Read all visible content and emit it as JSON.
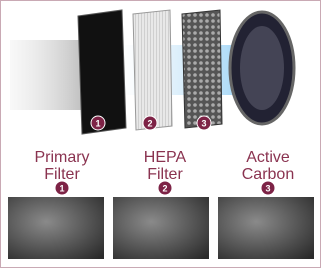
{
  "filters": [
    {
      "label": [
        "Primary",
        "Filter"
      ],
      "number": "1"
    },
    {
      "label": [
        "HEPA",
        "Filter"
      ],
      "number": "2"
    },
    {
      "label": [
        "Active",
        "Carbon"
      ],
      "number": "3"
    }
  ]
}
